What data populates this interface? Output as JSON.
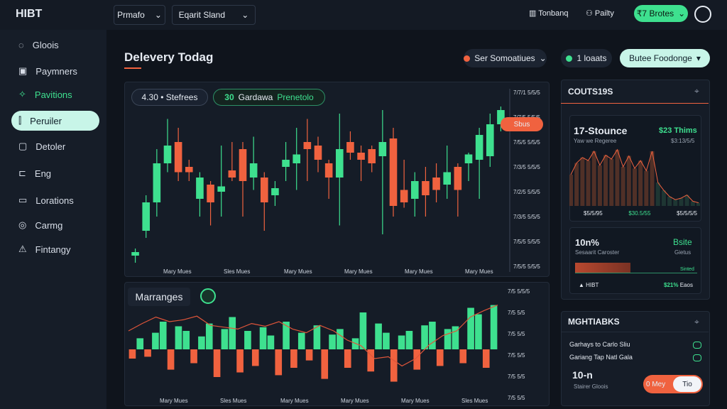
{
  "topbar": {
    "logo": "HIBT",
    "dropdown_1": "Prmafo",
    "dropdown_2": "Eqarit Sland",
    "link_1": "Tonbanq",
    "link_2": "Pailty",
    "button": "₹7 Brotes"
  },
  "sidebar": [
    "Gloois",
    "Paymners",
    "Pavitions",
    "Peruiler",
    "Detoler",
    "Eng",
    "Lorations",
    "Carmg",
    "Fintangy"
  ],
  "header": {
    "title": "Delevery Todag",
    "filter": "Ser Somoatiues",
    "status": "1 loaats",
    "action": "Butee Foodonge"
  },
  "main_chart": {
    "pill_1": "4.30 • Stefrees",
    "pill_2_num": "30",
    "pill_2_text": "Gardawa",
    "pill_2_tag": "Prenetolo",
    "price_tag": "Sbus",
    "y_labels": [
      "7/7/1 5/5/5",
      "7/7/5 5/5/5",
      "7/5/5 5/5/5",
      "7/3/5 5/5/5",
      "7/2/5 5/5/5",
      "7/3/5 5/5/5",
      "7/5/5 5/5/5",
      "7/5/5 5/5/5"
    ],
    "x_labels": [
      "Mary Mues",
      "Sles Mues",
      "Mary Mues",
      "Mary Mues",
      "Mary Mues",
      "Mary Mues"
    ],
    "ylim": [
      0,
      100
    ],
    "candles": [
      {
        "open": 8,
        "close": 10,
        "high": 12,
        "low": 4
      },
      {
        "open": 22,
        "close": 38,
        "high": 42,
        "low": 18
      },
      {
        "open": 38,
        "close": 60,
        "high": 68,
        "low": 30
      },
      {
        "open": 60,
        "close": 70,
        "high": 85,
        "low": 55
      },
      {
        "open": 72,
        "close": 55,
        "high": 80,
        "low": 50
      },
      {
        "open": 58,
        "close": 55,
        "high": 62,
        "low": 50
      },
      {
        "open": 40,
        "close": 52,
        "high": 55,
        "low": 30
      },
      {
        "open": 48,
        "close": 38,
        "high": 50,
        "low": 25
      },
      {
        "open": 44,
        "close": 47,
        "high": 70,
        "low": 30
      },
      {
        "open": 56,
        "close": 52,
        "high": 72,
        "low": 50
      },
      {
        "open": 68,
        "close": 50,
        "high": 72,
        "low": 30
      },
      {
        "open": 52,
        "close": 60,
        "high": 75,
        "low": 45
      },
      {
        "open": 52,
        "close": 38,
        "high": 55,
        "low": 22
      },
      {
        "open": 42,
        "close": 46,
        "high": 50,
        "low": 36
      },
      {
        "open": 58,
        "close": 62,
        "high": 72,
        "low": 50
      },
      {
        "open": 60,
        "close": 65,
        "high": 80,
        "low": 45
      },
      {
        "open": 72,
        "close": 68,
        "high": 85,
        "low": 50
      },
      {
        "open": 70,
        "close": 62,
        "high": 75,
        "low": 55
      },
      {
        "open": 60,
        "close": 52,
        "high": 62,
        "low": 40
      },
      {
        "open": 52,
        "close": 68,
        "high": 88,
        "low": 25
      },
      {
        "open": 72,
        "close": 66,
        "high": 78,
        "low": 62
      },
      {
        "open": 66,
        "close": 62,
        "high": 70,
        "low": 50
      },
      {
        "open": 68,
        "close": 60,
        "high": 70,
        "low": 55
      },
      {
        "open": 64,
        "close": 72,
        "high": 90,
        "low": 20
      },
      {
        "open": 74,
        "close": 36,
        "high": 80,
        "low": 30
      },
      {
        "open": 45,
        "close": 38,
        "high": 62,
        "low": 35
      },
      {
        "open": 40,
        "close": 50,
        "high": 55,
        "low": 30
      },
      {
        "open": 50,
        "close": 42,
        "high": 58,
        "low": 30
      },
      {
        "open": 52,
        "close": 45,
        "high": 60,
        "low": 38
      },
      {
        "open": 48,
        "close": 55,
        "high": 70,
        "low": 40
      },
      {
        "open": 58,
        "close": 45,
        "high": 60,
        "low": 30
      },
      {
        "open": 60,
        "close": 65,
        "high": 66,
        "low": 50
      },
      {
        "open": 62,
        "close": 76,
        "high": 80,
        "low": 40
      },
      {
        "open": 64,
        "close": 82,
        "high": 88,
        "low": 58
      },
      {
        "open": 82,
        "close": 90,
        "high": 92,
        "low": 78
      }
    ],
    "up_color": "#3ee08f",
    "down_color": "#f0623f"
  },
  "volume_chart": {
    "title": "Marranges",
    "y_labels": [
      "7/5 5/5/5",
      "7/5 5/5",
      "7/5 5/5",
      "7/5 5/5",
      "7/5 5/5",
      "7/5 5/5"
    ],
    "x_labels": [
      "Mary Mues",
      "Sles Mues",
      "Mary Mues",
      "Mary Mues",
      "Mary Mues",
      "Sles Mues"
    ],
    "ylim": [
      -50,
      50
    ],
    "values": [
      -10,
      12,
      -8,
      18,
      30,
      -22,
      25,
      20,
      -15,
      14,
      28,
      -30,
      22,
      35,
      -25,
      20,
      -18,
      24,
      15,
      -28,
      30,
      -20,
      18,
      -12,
      26,
      -32,
      16,
      22,
      -20,
      12,
      40,
      -24,
      28,
      18,
      -35,
      15,
      20,
      -22,
      26,
      30,
      -18,
      22,
      25,
      -15,
      45,
      38,
      -20,
      48
    ],
    "line": [
      20,
      28,
      35,
      30,
      32,
      36,
      26,
      24,
      22,
      28,
      25,
      30,
      22,
      18,
      26,
      20,
      10,
      4,
      -10,
      -8,
      -18,
      -10,
      5,
      15,
      20,
      35,
      42,
      48
    ],
    "line_color": "#e0553a"
  },
  "stats_panel": {
    "title": "COUTS19S",
    "card_1": {
      "title": "17-Stounce",
      "value": "$23 Thims",
      "sub_left": "Yaw we Regeree",
      "sub_right": "$3:13/5/5",
      "mini": [
        40,
        55,
        62,
        58,
        70,
        52,
        65,
        60,
        72,
        50,
        64,
        48,
        58,
        45,
        70,
        30,
        20,
        12,
        8,
        10,
        14,
        6,
        4
      ],
      "foot": [
        "$5/5/95",
        "$30.5/55",
        "$5/5/5/5"
      ]
    },
    "card_2": {
      "title": "10n%",
      "value": "Bsite",
      "sub_left": "Sesaarit Caroster",
      "sub_right": "Gietus",
      "tag": "Sinted",
      "foot_left": "HIBT",
      "foot_right_num": "$21%",
      "foot_right": "Eaos"
    }
  },
  "list_panel": {
    "title": "MGHTIABKS",
    "rows": [
      "Garhays to Carlo Sliu",
      "Gariang Tap Natl Gala"
    ],
    "big": "10-n",
    "big_sub": "Stairer Gloois",
    "toggle_on": "0 Mey",
    "toggle_off": "Tio"
  }
}
